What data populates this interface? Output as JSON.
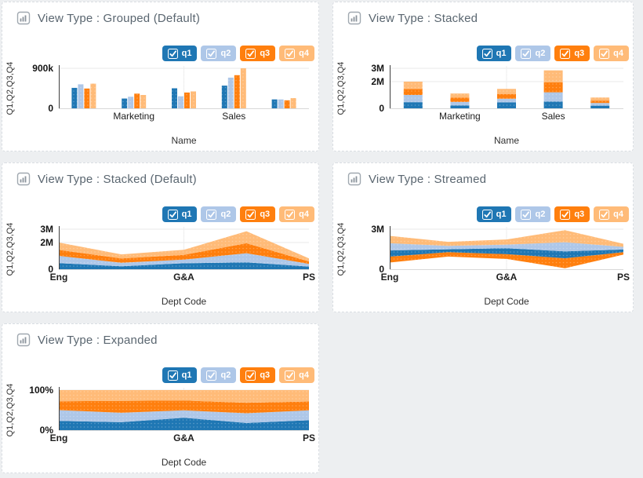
{
  "page": {
    "background_color": "#edeff1",
    "card_background": "#ffffff",
    "card_border_color": "#d9dde2",
    "title_color": "#5a6670",
    "grid_color": "#eaeaea",
    "axis_color": "#3f3f3f"
  },
  "legend": {
    "items": [
      {
        "id": "q1",
        "label": "q1",
        "color": "#1f77b4",
        "checked": true
      },
      {
        "id": "q2",
        "label": "q2",
        "color": "#aec7e8",
        "checked": true
      },
      {
        "id": "q3",
        "label": "q3",
        "color": "#ff7f0e",
        "checked": true
      },
      {
        "id": "q4",
        "label": "q4",
        "color": "#ffbb78",
        "checked": true
      }
    ]
  },
  "chart_data": [
    {
      "id": "grouped",
      "type": "bar",
      "variant": "grouped",
      "title": "View Type : Grouped (Default)",
      "categories": [
        "",
        "Marketing",
        "",
        "Sales",
        ""
      ],
      "xlabel": "Name",
      "ylabel": "Q1,Q2,Q3,Q4",
      "ylim": [
        0,
        900000
      ],
      "yticks": [
        {
          "value": 900000,
          "label": "900k"
        },
        {
          "value": 0,
          "label": "0"
        }
      ],
      "grid": true,
      "legend_position": "top-right",
      "series": [
        {
          "name": "q1",
          "color": "#1f77b4",
          "values": [
            460000,
            220000,
            450000,
            510000,
            200000
          ]
        },
        {
          "name": "q2",
          "color": "#aec7e8",
          "values": [
            540000,
            260000,
            270000,
            690000,
            200000
          ]
        },
        {
          "name": "q3",
          "color": "#ff7f0e",
          "values": [
            445000,
            330000,
            355000,
            745000,
            180000
          ]
        },
        {
          "name": "q4",
          "color": "#ffbb78",
          "values": [
            555000,
            300000,
            380000,
            900000,
            230000
          ]
        }
      ]
    },
    {
      "id": "stacked-bar",
      "type": "bar",
      "variant": "stacked",
      "title": "View Type : Stacked",
      "categories": [
        "",
        "Marketing",
        "",
        "Sales",
        ""
      ],
      "xlabel": "Name",
      "ylabel": "Q1,Q2,Q3,Q4",
      "ylim": [
        0,
        3000000
      ],
      "yticks": [
        {
          "value": 3000000,
          "label": "3M"
        },
        {
          "value": 2000000,
          "label": "2M"
        },
        {
          "value": 0,
          "label": "0"
        }
      ],
      "grid": true,
      "legend_position": "top-right",
      "series": [
        {
          "name": "q1",
          "color": "#1f77b4",
          "values": [
            460000,
            220000,
            450000,
            510000,
            200000
          ]
        },
        {
          "name": "q2",
          "color": "#aec7e8",
          "values": [
            540000,
            260000,
            270000,
            690000,
            200000
          ]
        },
        {
          "name": "q3",
          "color": "#ff7f0e",
          "values": [
            445000,
            330000,
            355000,
            745000,
            180000
          ]
        },
        {
          "name": "q4",
          "color": "#ffbb78",
          "values": [
            555000,
            300000,
            380000,
            900000,
            230000
          ]
        }
      ]
    },
    {
      "id": "stacked-area",
      "type": "area",
      "variant": "stacked",
      "title": "View Type : Stacked (Default)",
      "categories": [
        "Eng",
        "",
        "G&A",
        "",
        "PS"
      ],
      "xlabel": "Dept Code",
      "ylabel": "Q1,Q2,Q3,Q4",
      "ylim": [
        0,
        3000000
      ],
      "yticks": [
        {
          "value": 3000000,
          "label": "3M"
        },
        {
          "value": 2000000,
          "label": "2M"
        },
        {
          "value": 0,
          "label": "0"
        }
      ],
      "grid": true,
      "legend_position": "top-right",
      "series": [
        {
          "name": "q1",
          "color": "#1f77b4",
          "values": [
            460000,
            220000,
            450000,
            510000,
            200000
          ]
        },
        {
          "name": "q2",
          "color": "#aec7e8",
          "values": [
            540000,
            260000,
            270000,
            690000,
            200000
          ]
        },
        {
          "name": "q3",
          "color": "#ff7f0e",
          "values": [
            445000,
            330000,
            355000,
            745000,
            180000
          ]
        },
        {
          "name": "q4",
          "color": "#ffbb78",
          "values": [
            555000,
            300000,
            380000,
            900000,
            230000
          ]
        }
      ]
    },
    {
      "id": "streamed",
      "type": "area",
      "variant": "stream",
      "title": "View Type : Streamed",
      "categories": [
        "Eng",
        "",
        "G&A",
        "",
        "PS"
      ],
      "xlabel": "Dept Code",
      "ylabel": "Q1,Q2,Q3,Q4",
      "ylim": [
        0,
        3000000
      ],
      "yticks": [
        {
          "value": 3000000,
          "label": "3M"
        },
        {
          "value": 0,
          "label": "0"
        }
      ],
      "grid": true,
      "legend_position": "top-right",
      "stack_order_bottom_to_top": [
        "q3",
        "q1",
        "q2",
        "q4"
      ],
      "series": [
        {
          "name": "q1",
          "color": "#1f77b4",
          "values": [
            460000,
            220000,
            450000,
            510000,
            200000
          ]
        },
        {
          "name": "q2",
          "color": "#aec7e8",
          "values": [
            540000,
            260000,
            270000,
            690000,
            200000
          ]
        },
        {
          "name": "q3",
          "color": "#ff7f0e",
          "values": [
            445000,
            330000,
            355000,
            745000,
            180000
          ]
        },
        {
          "name": "q4",
          "color": "#ffbb78",
          "values": [
            555000,
            300000,
            380000,
            900000,
            230000
          ]
        }
      ]
    },
    {
      "id": "expanded",
      "type": "area",
      "variant": "expanded",
      "title": "View Type : Expanded",
      "categories": [
        "Eng",
        "",
        "G&A",
        "",
        "PS"
      ],
      "xlabel": "Dept Code",
      "ylabel": "Q1,Q2,Q3,Q4",
      "ylim": [
        0,
        1
      ],
      "yticks": [
        {
          "value": 1,
          "label": "100%"
        },
        {
          "value": 0,
          "label": "0%"
        }
      ],
      "grid": true,
      "legend_position": "top-right",
      "series": [
        {
          "name": "q1",
          "color": "#1f77b4",
          "values": [
            460000,
            220000,
            450000,
            510000,
            200000
          ]
        },
        {
          "name": "q2",
          "color": "#aec7e8",
          "values": [
            540000,
            260000,
            270000,
            690000,
            200000
          ]
        },
        {
          "name": "q3",
          "color": "#ff7f0e",
          "values": [
            445000,
            330000,
            355000,
            745000,
            180000
          ]
        },
        {
          "name": "q4",
          "color": "#ffbb78",
          "values": [
            555000,
            300000,
            380000,
            900000,
            230000
          ]
        }
      ]
    }
  ]
}
